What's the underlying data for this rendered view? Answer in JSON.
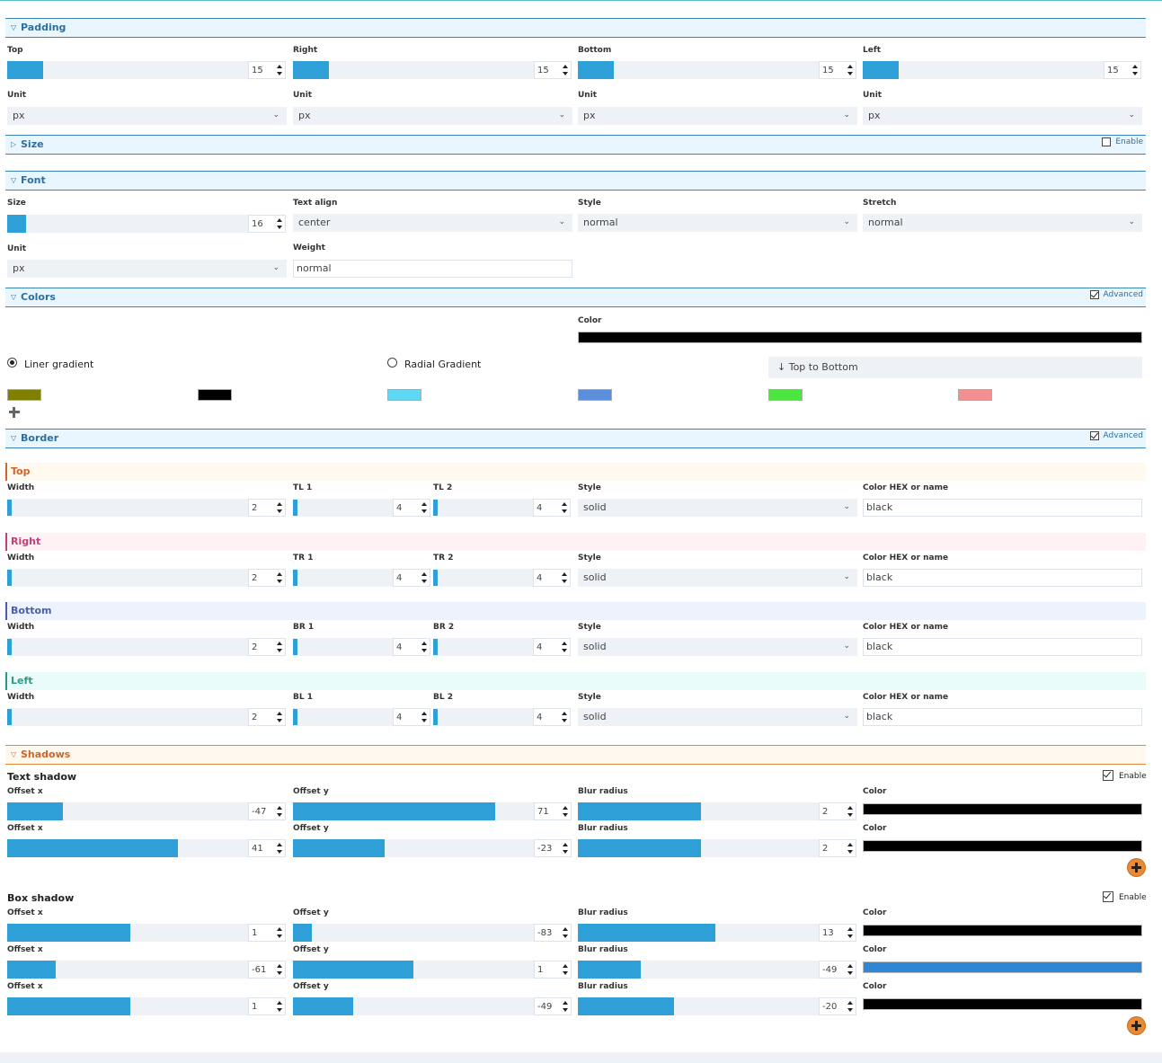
{
  "padding": {
    "title": "Padding",
    "fields": [
      {
        "label": "Top",
        "value": "15",
        "fill": 0.15,
        "unit_label": "Unit",
        "unit": "px"
      },
      {
        "label": "Right",
        "value": "15",
        "fill": 0.15,
        "unit_label": "Unit",
        "unit": "px"
      },
      {
        "label": "Bottom",
        "value": "15",
        "fill": 0.15,
        "unit_label": "Unit",
        "unit": "px"
      },
      {
        "label": "Left",
        "value": "15",
        "fill": 0.15,
        "unit_label": "Unit",
        "unit": "px"
      }
    ]
  },
  "size": {
    "title": "Size",
    "enable_label": "Enable"
  },
  "font": {
    "title": "Font",
    "size_label": "Size",
    "size_value": "16",
    "size_fill": 0.08,
    "align_label": "Text align",
    "align_value": "center",
    "style_label": "Style",
    "style_value": "normal",
    "stretch_label": "Stretch",
    "stretch_value": "normal",
    "unit_label": "Unit",
    "unit_value": "px",
    "weight_label": "Weight",
    "weight_value": "normal"
  },
  "colors": {
    "title": "Colors",
    "advanced_label": "Advanced",
    "color_label": "Color",
    "color_value": "#000000",
    "linear_label": "Liner gradient",
    "radial_label": "Radial Gradient",
    "direction": "↓ Top to Bottom",
    "stops": [
      "#808000",
      "#000000",
      "#5ed8f5",
      "#5b8fdc",
      "#4de640",
      "#f29090"
    ]
  },
  "border": {
    "title": "Border",
    "advanced_label": "Advanced",
    "sides": [
      {
        "name": "Top",
        "color": "#d0652a",
        "bg": "#fff9f0",
        "r1": "TL 1",
        "r2": "TL 2"
      },
      {
        "name": "Right",
        "color": "#c0407a",
        "bg": "#fff2f5",
        "r1": "TR 1",
        "r2": "TR 2"
      },
      {
        "name": "Bottom",
        "color": "#4a5fa8",
        "bg": "#edf3fc",
        "r1": "BR 1",
        "r2": "BR 2"
      },
      {
        "name": "Left",
        "color": "#2a9a86",
        "bg": "#eafcf9",
        "r1": "BL 1",
        "r2": "BL 2"
      }
    ],
    "width_label": "Width",
    "width_value": "2",
    "radius_value": "4",
    "style_label": "Style",
    "style_value": "solid",
    "color_label": "Color HEX or name",
    "color_value": "black"
  },
  "shadows": {
    "title": "Shadows",
    "text": {
      "label": "Text shadow",
      "enable_label": "Enable",
      "rows": [
        {
          "x": "-47",
          "xf": 0.23,
          "y": "71",
          "yf": 0.84,
          "blur": "2",
          "bf": 0.51,
          "color": "#000000"
        },
        {
          "x": "41",
          "xf": 0.71,
          "y": "-23",
          "yf": 0.38,
          "blur": "2",
          "bf": 0.51,
          "color": "#000000"
        }
      ]
    },
    "box": {
      "label": "Box shadow",
      "enable_label": "Enable",
      "rows": [
        {
          "x": "1",
          "xf": 0.51,
          "y": "-83",
          "yf": 0.08,
          "blur": "13",
          "bf": 0.57,
          "color": "#000000"
        },
        {
          "x": "-61",
          "xf": 0.2,
          "y": "1",
          "yf": 0.5,
          "blur": "-49",
          "bf": 0.26,
          "color": "#2e86d4"
        },
        {
          "x": "1",
          "xf": 0.51,
          "y": "-49",
          "yf": 0.25,
          "blur": "-20",
          "bf": 0.4,
          "color": "#000000"
        }
      ]
    },
    "offset_x_label": "Offset x",
    "offset_y_label": "Offset y",
    "blur_label": "Blur radius",
    "color_label": "Color"
  }
}
